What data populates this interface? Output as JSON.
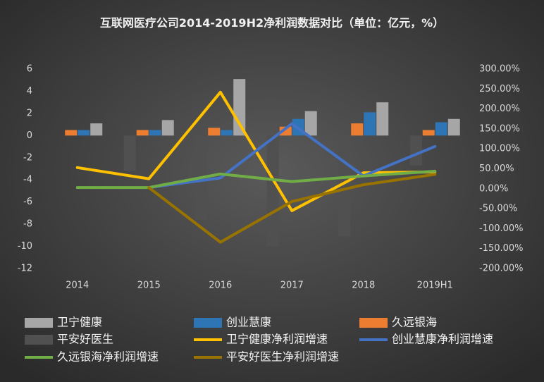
{
  "chart_data": {
    "type": "combo",
    "title": "互联网医疗公司2014-2019H2净利润数据对比（单位：亿元，%）",
    "categories": [
      "2014",
      "2015",
      "2016",
      "2017",
      "2018",
      "2019H1"
    ],
    "ylim": [
      -12,
      6
    ],
    "yticks": [
      -12,
      -10,
      -8,
      -6,
      -4,
      -2,
      0,
      2,
      4,
      6
    ],
    "y2lim": [
      -200,
      300
    ],
    "y2ticks": [
      {
        "value": -200,
        "label": "-200.00%"
      },
      {
        "value": -150,
        "label": "-150.00%"
      },
      {
        "value": -100,
        "label": "-100.00%"
      },
      {
        "value": -50,
        "label": "-50.00%"
      },
      {
        "value": 0,
        "label": "0.00%"
      },
      {
        "value": 50,
        "label": "50.00%"
      },
      {
        "value": 100,
        "label": "100.00%"
      },
      {
        "value": 150,
        "label": "150.00%"
      },
      {
        "value": 200,
        "label": "200.00%"
      },
      {
        "value": 250,
        "label": "250.00%"
      },
      {
        "value": 300,
        "label": "300.00%"
      }
    ],
    "series": [
      {
        "name": "卫宁健康",
        "type": "bar",
        "color": "#a6a6a6",
        "values": [
          1.1,
          1.4,
          5.1,
          2.2,
          3.0,
          1.5
        ]
      },
      {
        "name": "创业慧康",
        "type": "bar",
        "color": "#2e75b6",
        "values": [
          0.5,
          0.5,
          0.5,
          1.5,
          2.1,
          1.2
        ]
      },
      {
        "name": "久远银海",
        "type": "bar",
        "color": "#ed7d31",
        "values": [
          0.5,
          0.5,
          0.7,
          0.8,
          1.1,
          0.5
        ]
      },
      {
        "name": "平安好医生",
        "type": "bar",
        "color": "#505050",
        "values": [
          null,
          -3.2,
          -7.6,
          -10.0,
          -9.1,
          -2.7
        ]
      },
      {
        "name": "卫宁健康净利润增速",
        "type": "line",
        "axis": "y2",
        "color": "#ffc000",
        "values": [
          53,
          25,
          242,
          -55,
          40,
          42
        ]
      },
      {
        "name": "创业慧康净利润增速",
        "type": "line",
        "axis": "y2",
        "color": "#4472c4",
        "values": [
          null,
          3,
          27,
          163,
          32,
          106
        ]
      },
      {
        "name": "久远银海净利润增速",
        "type": "line",
        "axis": "y2",
        "color": "#70ad47",
        "values": [
          3,
          3,
          37,
          18,
          32,
          44
        ]
      },
      {
        "name": "平安好医生净利润增速",
        "type": "line",
        "axis": "y2",
        "color": "#997300",
        "values": [
          null,
          3,
          -134,
          -32,
          10,
          36
        ]
      }
    ]
  }
}
